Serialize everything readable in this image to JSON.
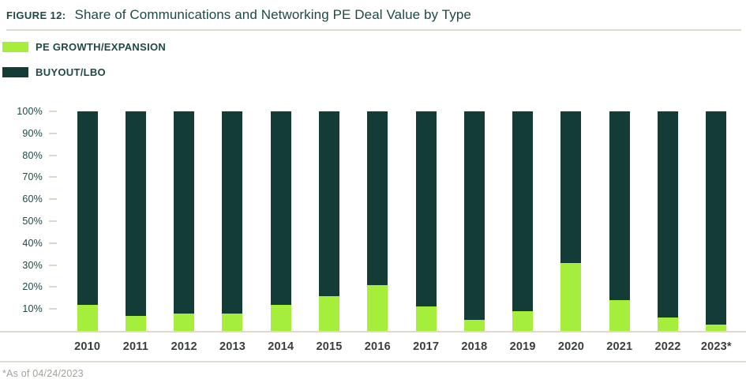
{
  "figure": {
    "label": "FIGURE 12:",
    "title": "Share of Communications and Networking PE Deal Value by Type"
  },
  "legend": {
    "items": [
      {
        "label": "PE GROWTH/EXPANSION",
        "color": "#a6ee3c"
      },
      {
        "label": "BUYOUT/LBO",
        "color": "#143c37"
      }
    ]
  },
  "footnote": "*As of 04/24/2023",
  "colors": {
    "accent_green": "#a6ee3c",
    "dark_teal": "#143c37",
    "rule": "#ded9cc",
    "title_text": "#1d4a45",
    "xlabel_text": "#3a3e3b",
    "footnote_text": "#a3a19b"
  },
  "chart_data": {
    "type": "bar",
    "stacked": true,
    "title": "Share of Communications and Networking PE Deal Value by Type",
    "categories": [
      "2010",
      "2011",
      "2012",
      "2013",
      "2014",
      "2015",
      "2016",
      "2017",
      "2018",
      "2019",
      "2020",
      "2021",
      "2022",
      "2023*"
    ],
    "series": [
      {
        "name": "PE Growth/Expansion",
        "color": "#a6ee3c",
        "values": [
          12,
          7,
          8,
          8,
          12,
          16,
          21,
          11,
          5,
          9,
          31,
          14,
          6,
          3
        ]
      },
      {
        "name": "Buyout/LBO",
        "color": "#143c37",
        "values": [
          88,
          93,
          92,
          92,
          88,
          84,
          79,
          89,
          95,
          91,
          69,
          86,
          94,
          97
        ]
      }
    ],
    "xlabel": "",
    "ylabel": "",
    "ylim": [
      0,
      100
    ],
    "yticks": [
      10,
      20,
      30,
      40,
      50,
      60,
      70,
      80,
      90,
      100
    ],
    "ytick_format": "percent",
    "grid": false,
    "legend_position": "top-left"
  }
}
